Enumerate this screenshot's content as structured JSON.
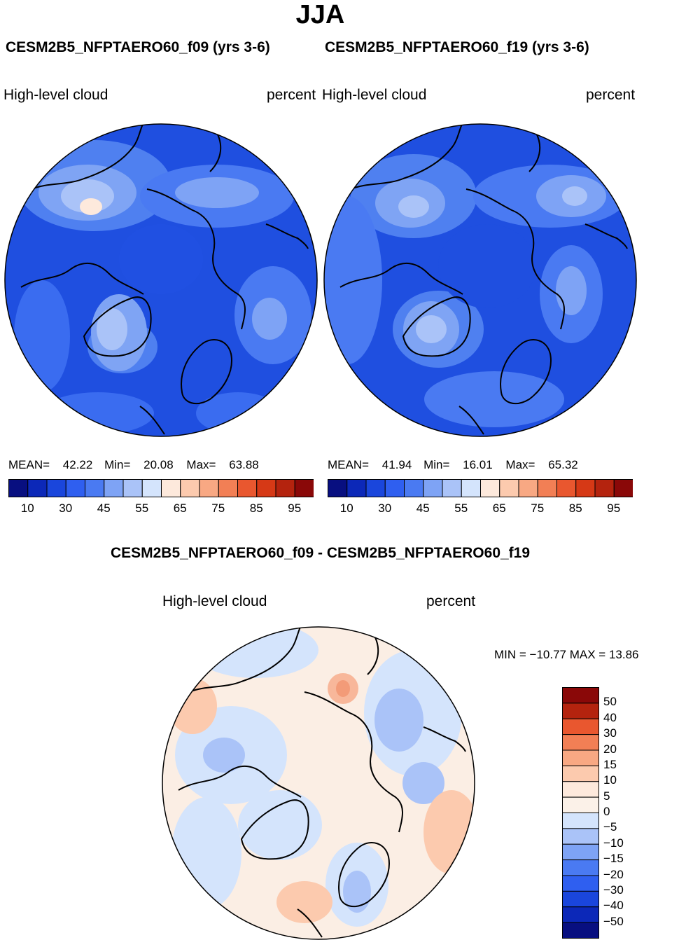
{
  "title": "JJA",
  "panels": [
    {
      "case": "CESM2B5_NFPTAERO60_f09 (yrs 3-6)",
      "variable": "High-level cloud",
      "units": "percent",
      "mean_label": "MEAN=",
      "mean": "42.22",
      "min_label": "Min=",
      "min": "20.08",
      "max_label": "Max=",
      "max": "63.88"
    },
    {
      "case": "CESM2B5_NFPTAERO60_f19 (yrs 3-6)",
      "variable": "High-level cloud",
      "units": "percent",
      "mean_label": "MEAN=",
      "mean": "41.94",
      "min_label": "Min=",
      "min": "16.01",
      "max_label": "Max=",
      "max": "65.32"
    }
  ],
  "difference": {
    "title": "CESM2B5_NFPTAERO60_f09 - CESM2B5_NFPTAERO60_f19",
    "variable": "High-level cloud",
    "units": "percent",
    "min_max_text": "MIN = −10.77 MAX =   13.86"
  },
  "chart_data": [
    {
      "type": "heatmap",
      "projection": "north polar stereographic",
      "title": "CESM2B5_NFPTAERO60_f09 (yrs 3-6)",
      "variable": "High-level cloud",
      "units": "percent",
      "mean": 42.22,
      "min": 20.08,
      "max": 63.88,
      "levels": [
        10,
        20,
        30,
        40,
        45,
        50,
        55,
        60,
        65,
        70,
        75,
        80,
        85,
        90,
        95
      ],
      "tick_labels": [
        "10",
        "30",
        "45",
        "55",
        "65",
        "75",
        "85",
        "95"
      ],
      "colors": [
        "#080f80",
        "#0c28b8",
        "#1a46dc",
        "#2f5ff0",
        "#4a7af2",
        "#7ea3f5",
        "#aac3f8",
        "#d4e4fc",
        "#fde9dc",
        "#fccaae",
        "#f8a883",
        "#f27f55",
        "#e9572f",
        "#d63916",
        "#b4230e",
        "#8a0808"
      ]
    },
    {
      "type": "heatmap",
      "projection": "north polar stereographic",
      "title": "CESM2B5_NFPTAERO60_f19 (yrs 3-6)",
      "variable": "High-level cloud",
      "units": "percent",
      "mean": 41.94,
      "min": 16.01,
      "max": 65.32,
      "levels": [
        10,
        20,
        30,
        40,
        45,
        50,
        55,
        60,
        65,
        70,
        75,
        80,
        85,
        90,
        95
      ],
      "tick_labels": [
        "10",
        "30",
        "45",
        "55",
        "65",
        "75",
        "85",
        "95"
      ],
      "colors": [
        "#080f80",
        "#0c28b8",
        "#1a46dc",
        "#2f5ff0",
        "#4a7af2",
        "#7ea3f5",
        "#aac3f8",
        "#d4e4fc",
        "#fde9dc",
        "#fccaae",
        "#f8a883",
        "#f27f55",
        "#e9572f",
        "#d63916",
        "#b4230e",
        "#8a0808"
      ]
    },
    {
      "type": "heatmap",
      "projection": "north polar stereographic",
      "title": "CESM2B5_NFPTAERO60_f09 - CESM2B5_NFPTAERO60_f19",
      "variable": "High-level cloud",
      "units": "percent",
      "min": -10.77,
      "max": 13.86,
      "levels": [
        50,
        40,
        30,
        20,
        15,
        10,
        5,
        0,
        -5,
        -10,
        -15,
        -20,
        -30,
        -40,
        -50
      ],
      "tick_labels": [
        "50",
        "40",
        "30",
        "20",
        "15",
        "10",
        "5",
        "0",
        "−5",
        "−10",
        "−15",
        "−20",
        "−30",
        "−40",
        "−50"
      ],
      "colors": [
        "#8a0808",
        "#b4230e",
        "#e9572f",
        "#f27f55",
        "#f8a883",
        "#fccaae",
        "#fde9dc",
        "#fbf1e8",
        "#d4e4fc",
        "#aac3f8",
        "#7ea3f5",
        "#4a7af2",
        "#2f5ff0",
        "#1a46dc",
        "#0c28b8",
        "#080f80"
      ]
    }
  ]
}
